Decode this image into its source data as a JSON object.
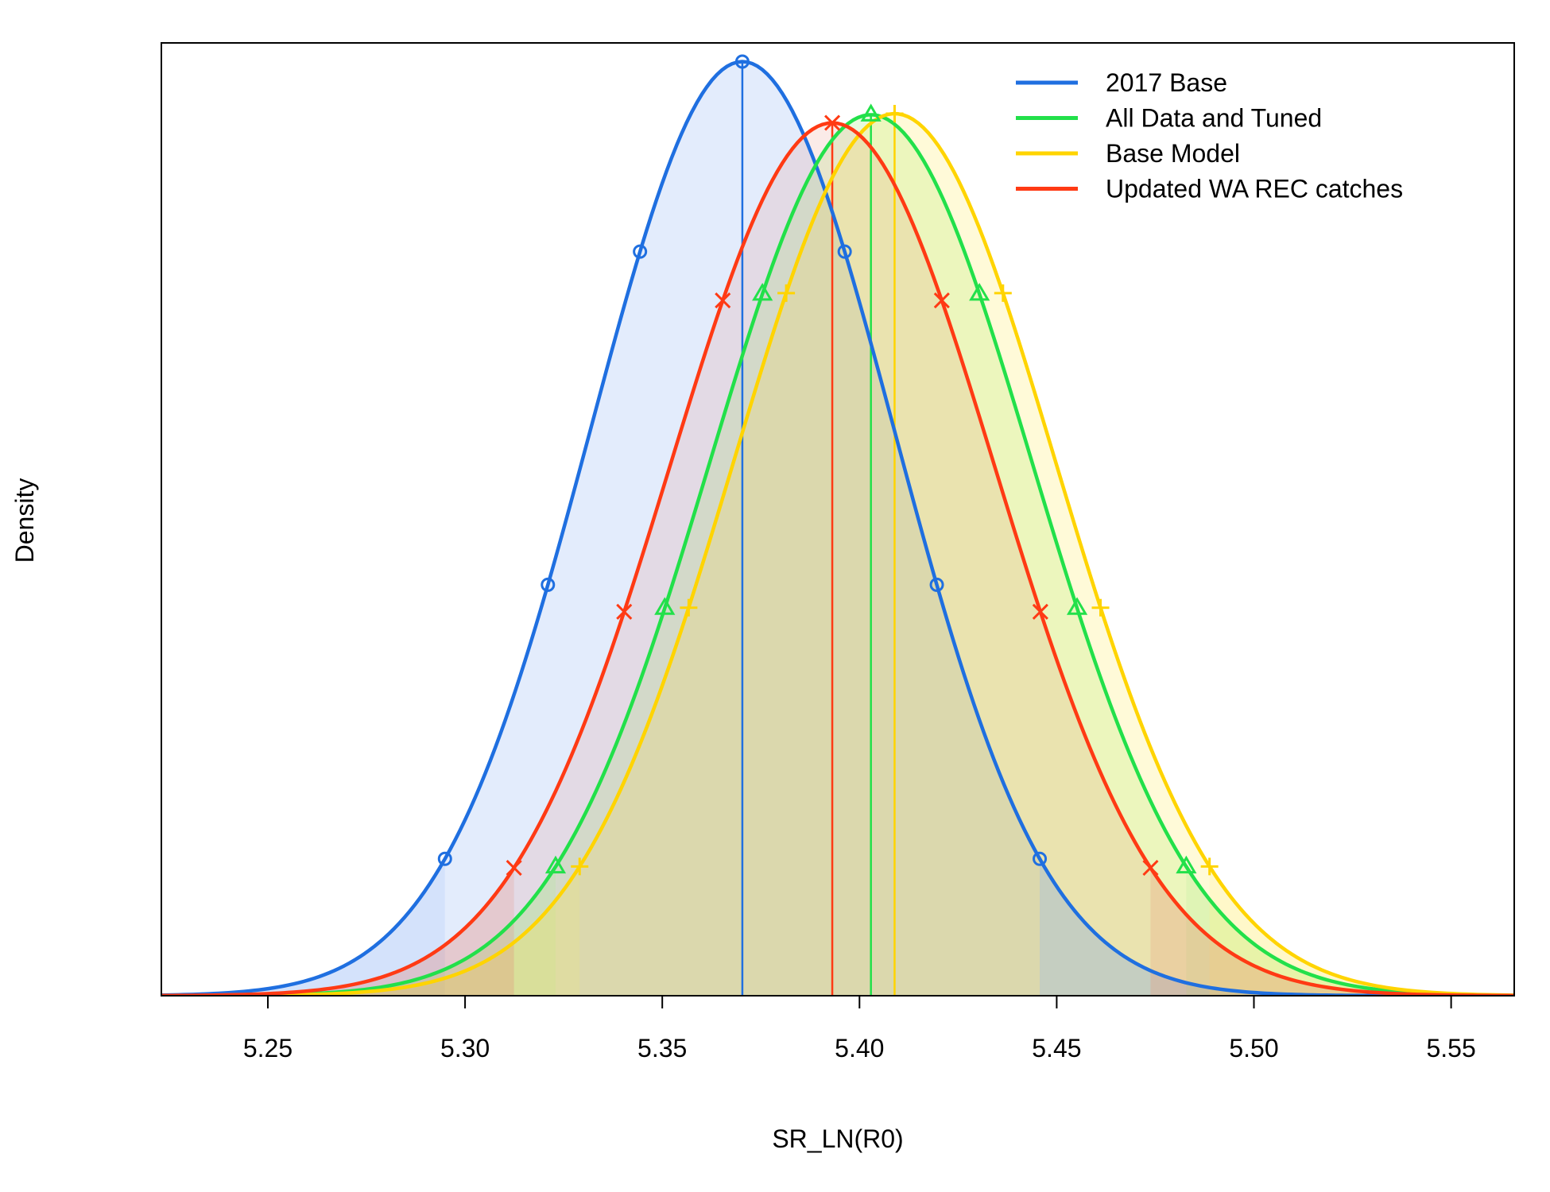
{
  "chart_data": {
    "type": "line",
    "xlabel": "SR_LN(R0)",
    "ylabel": "Density",
    "xlim": [
      5.223,
      5.566
    ],
    "ylim": [
      0,
      1.02
    ],
    "x_ticks": [
      "5.25",
      "5.30",
      "5.35",
      "5.40",
      "5.45",
      "5.50",
      "5.55"
    ],
    "legend_position": "top-right",
    "series": [
      {
        "name": "2017 Base",
        "mean": 5.3703,
        "sd": 0.03847,
        "color": "#1f6fe0",
        "marker": "circle",
        "fill": "rgba(100,150,240,0.18)"
      },
      {
        "name": "All Data and Tuned",
        "mean": 5.4029,
        "sd": 0.04079,
        "color": "#22e04a",
        "marker": "triangle",
        "fill": "rgba(140,230,90,0.20)"
      },
      {
        "name": "Base Model",
        "mean": 5.4089,
        "sd": 0.04074,
        "color": "#ffd400",
        "marker": "plus",
        "fill": "rgba(255,230,60,0.20)"
      },
      {
        "name": "Updated WA REC catches",
        "mean": 5.3931,
        "sd": 0.04117,
        "color": "#ff3a14",
        "marker": "cross",
        "fill": "rgba(230,110,90,0.14)"
      }
    ],
    "peak_density_relative": [
      1.0,
      0.9432,
      0.9445,
      0.9346
    ],
    "marker_quantiles": [
      0.025,
      0.1,
      0.25,
      0.5,
      0.75,
      0.9,
      0.975
    ]
  }
}
